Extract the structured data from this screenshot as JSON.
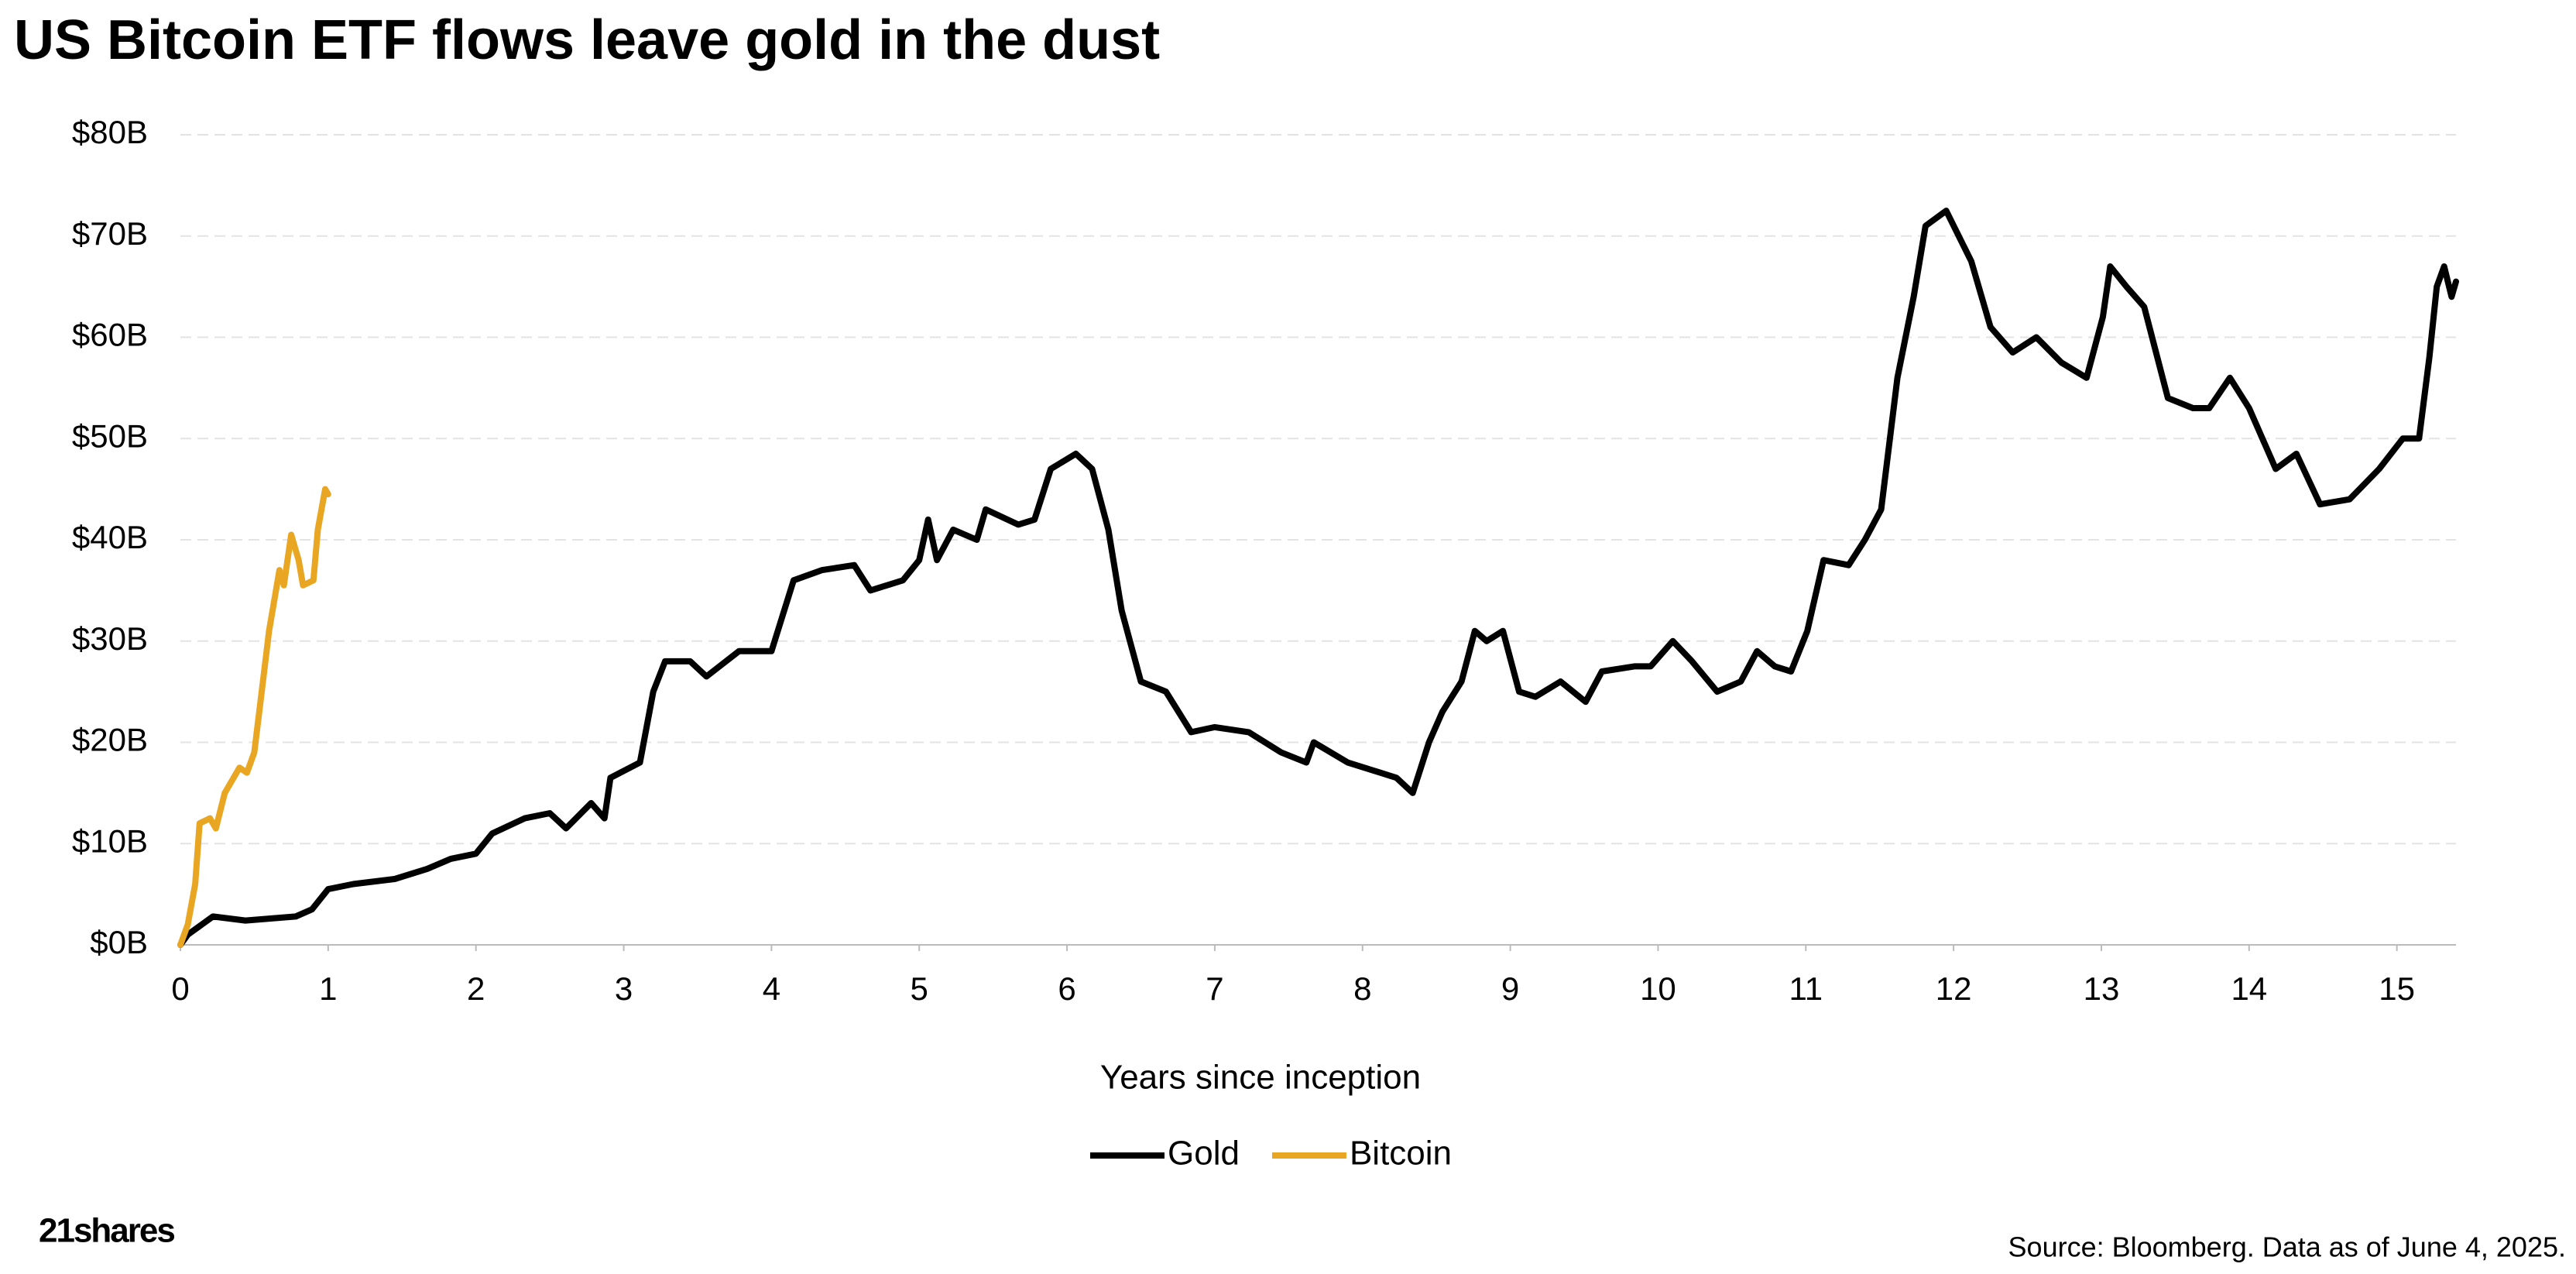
{
  "chart_data": {
    "type": "line",
    "title": "US Bitcoin ETF flows leave gold in the dust",
    "x_label": "Years since inception",
    "source": "Source: Bloomberg. Data as of June 4, 2025.",
    "logo": "21shares",
    "xlim": [
      0,
      15.4
    ],
    "xticks": [
      0,
      1,
      2,
      3,
      4,
      5,
      6,
      7,
      8,
      9,
      10,
      11,
      12,
      13,
      14,
      15
    ],
    "ylim": [
      0,
      80
    ],
    "yticks": [
      {
        "value": 0,
        "label": "$0B"
      },
      {
        "value": 10,
        "label": "$10B"
      },
      {
        "value": 20,
        "label": "$20B"
      },
      {
        "value": 30,
        "label": "$30B"
      },
      {
        "value": 40,
        "label": "$40B"
      },
      {
        "value": 50,
        "label": "$50B"
      },
      {
        "value": 60,
        "label": "$60B"
      },
      {
        "value": 70,
        "label": "$70B"
      },
      {
        "value": 80,
        "label": "$80B"
      }
    ],
    "grid": true,
    "legend": "bottom",
    "series": [
      {
        "name": "Gold",
        "color": "#000000",
        "x": [
          0,
          0.05,
          0.22,
          0.44,
          0.78,
          0.89,
          1.0,
          1.17,
          1.45,
          1.67,
          1.83,
          2.0,
          2.11,
          2.33,
          2.5,
          2.61,
          2.78,
          2.87,
          2.91,
          3.11,
          3.2,
          3.28,
          3.45,
          3.56,
          3.78,
          4.0,
          4.15,
          4.34,
          4.56,
          4.67,
          4.89,
          5.0,
          5.06,
          5.12,
          5.23,
          5.39,
          5.45,
          5.67,
          5.78,
          5.89,
          6.06,
          6.17,
          6.28,
          6.37,
          6.5,
          6.67,
          6.84,
          7.0,
          7.23,
          7.45,
          7.62,
          7.67,
          7.9,
          8.12,
          8.23,
          8.34,
          8.45,
          8.54,
          8.67,
          8.76,
          8.84,
          8.95,
          9.06,
          9.17,
          9.34,
          9.51,
          9.62,
          9.84,
          9.95,
          10.1,
          10.23,
          10.4,
          10.56,
          10.67,
          10.79,
          10.9,
          11.01,
          11.12,
          11.29,
          11.4,
          11.51,
          11.62,
          11.73,
          11.81,
          11.95,
          12.12,
          12.25,
          12.4,
          12.56,
          12.73,
          12.9,
          13.01,
          13.06,
          13.17,
          13.29,
          13.45,
          13.62,
          13.73,
          13.87,
          14.0,
          14.18,
          14.32,
          14.48,
          14.68,
          14.88,
          15.04,
          15.15,
          15.22,
          15.27,
          15.32,
          15.37,
          15.4
        ],
        "values": [
          0,
          1,
          2.8,
          2.4,
          2.8,
          3.5,
          5.5,
          6,
          6.5,
          7.5,
          8.5,
          9,
          11,
          12.5,
          13,
          11.5,
          14,
          12.5,
          16.5,
          18,
          25,
          28,
          28,
          26.5,
          29,
          29,
          36,
          37,
          37.5,
          35,
          36,
          38,
          42,
          38,
          41,
          40,
          43,
          41.5,
          42,
          47,
          48.5,
          47,
          41,
          33,
          26,
          25,
          21,
          21.5,
          21,
          19,
          18,
          20,
          18,
          17,
          16.5,
          15,
          20,
          23,
          26,
          31,
          30,
          31,
          25,
          24.5,
          26,
          24,
          27,
          27.5,
          27.5,
          30,
          28,
          25,
          26,
          29,
          27.5,
          27,
          31,
          38,
          37.5,
          40,
          43,
          56,
          64,
          71,
          72.5,
          67.5,
          61,
          58.5,
          60,
          57.5,
          56,
          62,
          67,
          65,
          63,
          54,
          53,
          53,
          56,
          53,
          47,
          48.5,
          43.5,
          44,
          47,
          50,
          50,
          58,
          65,
          67,
          64,
          65.5
        ]
      },
      {
        "name": "Bitcoin",
        "color": "#e8a623",
        "x": [
          0,
          0.05,
          0.1,
          0.13,
          0.2,
          0.24,
          0.3,
          0.4,
          0.45,
          0.5,
          0.55,
          0.6,
          0.67,
          0.7,
          0.75,
          0.8,
          0.83,
          0.9,
          0.93,
          0.98,
          1.0
        ],
        "values": [
          0,
          2,
          6,
          12,
          12.5,
          11.5,
          15,
          17.5,
          17,
          19,
          25,
          31,
          37,
          35.5,
          40.5,
          38,
          35.5,
          36,
          41,
          45,
          44.5
        ]
      }
    ]
  }
}
